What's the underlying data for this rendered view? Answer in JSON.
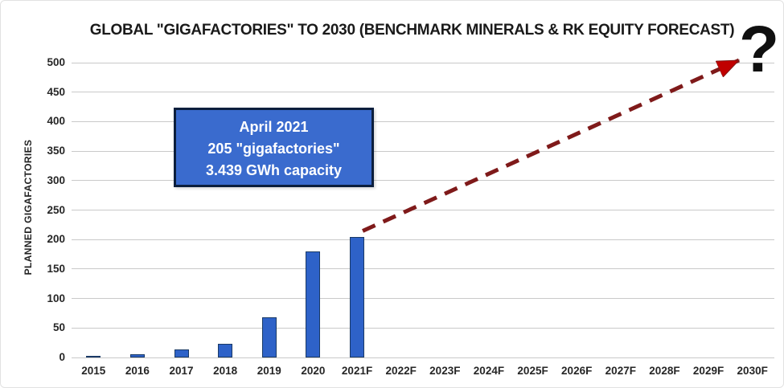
{
  "chart_data": {
    "type": "bar",
    "title": "GLOBAL \"GIGAFACTORIES\" TO 2030 (BENCHMARK MINERALS & RK EQUITY FORECAST)",
    "categories": [
      "2015",
      "2016",
      "2017",
      "2018",
      "2019",
      "2020",
      "2021F",
      "2022F",
      "2023F",
      "2024F",
      "2025F",
      "2026F",
      "2027F",
      "2028F",
      "2029F",
      "2030F"
    ],
    "values": [
      2,
      6,
      13,
      23,
      68,
      180,
      205,
      null,
      null,
      null,
      null,
      null,
      null,
      null,
      null,
      null
    ],
    "xlabel": "",
    "ylabel": "PLANNED GIGAFACTORIES",
    "ylim": [
      0,
      500
    ],
    "ytick_step": 50,
    "yticks": [
      0,
      50,
      100,
      150,
      200,
      250,
      300,
      350,
      400,
      450,
      500
    ],
    "grid": true,
    "legend": false,
    "bar_color": "#2e62c8",
    "bar_border_color": "#1a3a66",
    "gridline_color": "#c9c9c9",
    "question_mark": "?",
    "annotation": {
      "lines": [
        "April 2021",
        "205 \"gigafactories\"",
        "3.439 GWh capacity"
      ],
      "fill": "#3a6bce",
      "border": "#0c1f3d",
      "text_color": "#ffffff"
    },
    "trend_arrow": {
      "style": "dashed",
      "color": "#7f1a1a",
      "head_color": "#c00000",
      "from_category": "2021F",
      "from_value": 205,
      "to_label": "?"
    }
  }
}
